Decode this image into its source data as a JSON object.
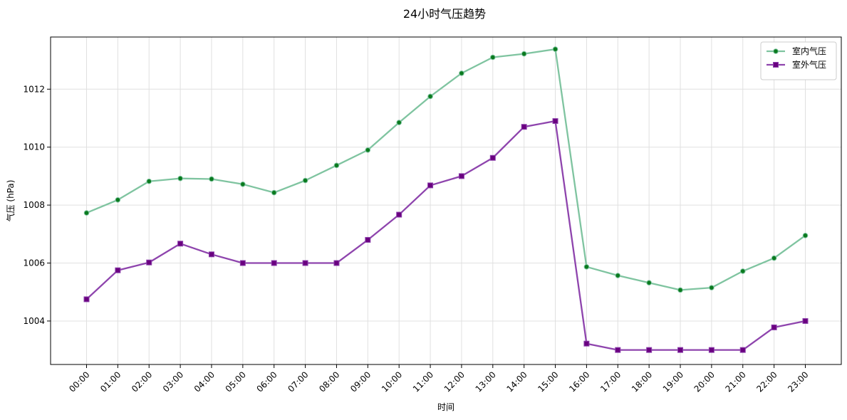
{
  "chart_data": {
    "type": "line",
    "title": "24小时气压趋势",
    "xlabel": "时间",
    "ylabel": "气压 (hPa)",
    "categories": [
      "00:00",
      "01:00",
      "02:00",
      "03:00",
      "04:00",
      "05:00",
      "06:00",
      "07:00",
      "08:00",
      "09:00",
      "10:00",
      "11:00",
      "12:00",
      "13:00",
      "14:00",
      "15:00",
      "16:00",
      "17:00",
      "18:00",
      "19:00",
      "20:00",
      "21:00",
      "22:00",
      "23:00"
    ],
    "ylim": [
      1002.5,
      1013.8
    ],
    "yticks": [
      1004,
      1006,
      1008,
      1010,
      1012
    ],
    "grid": true,
    "legend_position": "top-right",
    "series": [
      {
        "name": "室内气压",
        "color": "#7fc4a0",
        "marker_color": "#0a7a1e",
        "marker": "circle",
        "values": [
          1007.73,
          1008.18,
          1008.82,
          1008.92,
          1008.9,
          1008.72,
          1008.43,
          1008.85,
          1009.37,
          1009.9,
          1010.85,
          1011.75,
          1012.55,
          1013.1,
          1013.22,
          1013.38,
          1005.87,
          1005.57,
          1005.32,
          1005.07,
          1005.15,
          1005.72,
          1006.17,
          1006.95
        ]
      },
      {
        "name": "室外气压",
        "color": "#8e44ad",
        "marker_color": "#6a0080",
        "marker": "square",
        "values": [
          1004.75,
          1005.75,
          1006.02,
          1006.67,
          1006.3,
          1006.0,
          1006.0,
          1006.0,
          1006.0,
          1006.8,
          1007.67,
          1008.68,
          1009.0,
          1009.63,
          1010.7,
          1010.9,
          1003.22,
          1003.0,
          1003.0,
          1003.0,
          1003.0,
          1003.0,
          1003.78,
          1004.0
        ]
      }
    ]
  }
}
